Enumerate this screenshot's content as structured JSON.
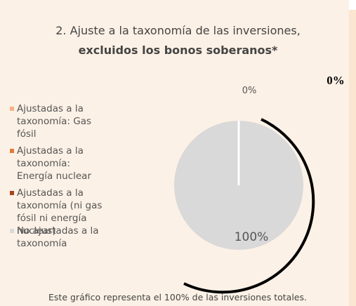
{
  "chart_data": {
    "type": "pie",
    "title": "2. Ajuste a la taxonomía de las inversiones,",
    "subtitle": "excluidos los bonos soberanos*",
    "categories": [
      "Ajustadas a la taxonomía: Gas fósil",
      "Ajustadas a la taxonomía: Energía nuclear",
      "Ajustadas a la taxonomía (ni gas fósil ni energía nuclear)",
      "No ajustadas a la taxonomía"
    ],
    "values": [
      0,
      0,
      0,
      100
    ],
    "value_labels": [
      null,
      null,
      "0%",
      "100%"
    ],
    "colors": [
      "#f4b183",
      "#e07b39",
      "#a5451c",
      "#d9d9d9"
    ],
    "annotation": "0%",
    "note": "Este gráfico representa el 100% de las inversiones totales."
  }
}
